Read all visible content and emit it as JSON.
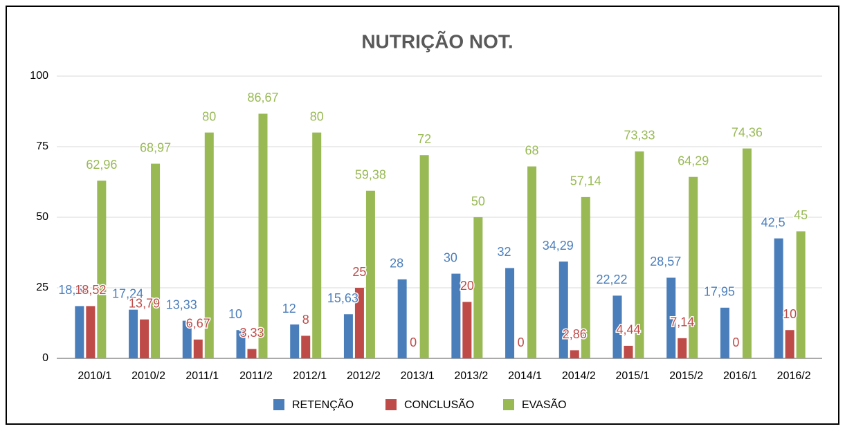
{
  "chart_data": {
    "type": "bar",
    "title": "NUTRIÇÃO NOT.",
    "categories": [
      "2010/1",
      "2010/2",
      "2011/1",
      "2011/2",
      "2012/1",
      "2012/2",
      "2013/1",
      "2013/2",
      "2014/1",
      "2014/2",
      "2015/1",
      "2015/2",
      "2016/1",
      "2016/2"
    ],
    "series": [
      {
        "name": "RETENÇÃO",
        "color": "#4a7ebb",
        "values": [
          18.52,
          17.24,
          13.33,
          10,
          12,
          15.63,
          28,
          30,
          32,
          34.29,
          22.22,
          28.57,
          17.95,
          42.5
        ],
        "value_labels": [
          "18,52",
          "17,24",
          "13,33",
          "10",
          "12",
          "15,63",
          "28",
          "30",
          "32",
          "34,29",
          "22,22",
          "28,57",
          "17,95",
          "42,5"
        ]
      },
      {
        "name": "CONCLUSÃO",
        "color": "#be4b48",
        "values": [
          18.52,
          13.79,
          6.67,
          3.33,
          8,
          25,
          0,
          20,
          0,
          2.86,
          4.44,
          7.14,
          0,
          10
        ],
        "value_labels": [
          "18,52",
          "13,79",
          "6,67",
          "3,33",
          "8",
          "25",
          "0",
          "20",
          "0",
          "2,86",
          "4,44",
          "7,14",
          "0",
          "10"
        ]
      },
      {
        "name": "EVASÃO",
        "color": "#98b954",
        "values": [
          62.96,
          68.97,
          80,
          86.67,
          80,
          59.38,
          72,
          50,
          68,
          57.14,
          73.33,
          64.29,
          74.36,
          45
        ],
        "value_labels": [
          "62,96",
          "68,97",
          "80",
          "86,67",
          "80",
          "59,38",
          "72",
          "50",
          "68",
          "57,14",
          "73,33",
          "64,29",
          "74,36",
          "45"
        ]
      }
    ],
    "ylim": [
      0,
      100
    ],
    "yticks": [
      0,
      25,
      50,
      75,
      100
    ],
    "grid": true,
    "legend": "bottom"
  }
}
